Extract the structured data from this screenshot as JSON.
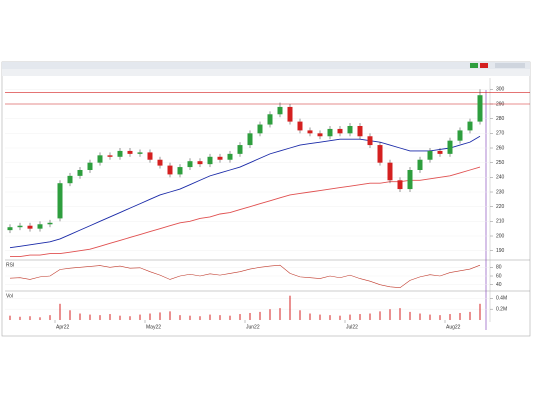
{
  "chart_data": [
    {
      "type": "candlestick",
      "categories": [
        null,
        null,
        null,
        null,
        null,
        "Apr22",
        null,
        null,
        null,
        null,
        null,
        null,
        null,
        null,
        "May22",
        null,
        null,
        null,
        null,
        null,
        null,
        null,
        null,
        null,
        "Jun22",
        null,
        null,
        null,
        null,
        null,
        null,
        null,
        null,
        null,
        "Jul22",
        null,
        null,
        null,
        null,
        null,
        null,
        null,
        null,
        null,
        "Aug22",
        null,
        null,
        null
      ],
      "open": [
        204,
        206,
        207,
        205,
        208,
        212,
        236,
        241,
        245,
        250,
        255,
        254,
        258,
        256,
        257,
        252,
        248,
        242,
        247,
        251,
        249,
        254,
        252,
        256,
        262,
        270,
        276,
        283,
        288,
        278,
        272,
        270,
        268,
        273,
        270,
        275,
        268,
        262,
        250,
        238,
        232,
        245,
        252,
        258,
        256,
        265,
        272,
        278
      ],
      "high": [
        208,
        209,
        209,
        210,
        211,
        238,
        243,
        247,
        252,
        257,
        257,
        260,
        260,
        259,
        259,
        254,
        250,
        249,
        253,
        253,
        256,
        256,
        258,
        264,
        272,
        278,
        285,
        291,
        290,
        280,
        274,
        272,
        275,
        275,
        277,
        277,
        270,
        264,
        252,
        240,
        247,
        254,
        260,
        260,
        267,
        274,
        280,
        300
      ],
      "low": [
        202,
        204,
        203,
        203,
        206,
        210,
        234,
        239,
        243,
        248,
        252,
        252,
        254,
        254,
        250,
        246,
        240,
        240,
        245,
        247,
        247,
        250,
        250,
        254,
        260,
        268,
        274,
        281,
        276,
        270,
        268,
        266,
        266,
        268,
        268,
        266,
        260,
        248,
        236,
        230,
        230,
        243,
        250,
        254,
        254,
        263,
        270,
        276
      ],
      "close": [
        206,
        207,
        205,
        208,
        209,
        236,
        241,
        245,
        250,
        255,
        254,
        258,
        256,
        257,
        252,
        248,
        242,
        247,
        251,
        249,
        254,
        252,
        256,
        262,
        270,
        276,
        283,
        288,
        278,
        272,
        270,
        268,
        273,
        270,
        275,
        268,
        262,
        250,
        238,
        232,
        245,
        252,
        258,
        256,
        265,
        272,
        278,
        296
      ],
      "up_color": "#2e9e3e",
      "down_color": "#d42020",
      "overlays": [
        {
          "color": "#1a2aa8",
          "values": [
            192,
            193,
            194,
            195,
            196,
            198,
            201,
            204,
            207,
            210,
            213,
            216,
            219,
            222,
            225,
            228,
            230,
            232,
            235,
            238,
            241,
            243,
            245,
            247,
            250,
            253,
            256,
            258,
            260,
            262,
            263,
            264,
            265,
            266,
            266,
            266,
            265,
            264,
            262,
            260,
            258,
            258,
            258,
            259,
            260,
            262,
            264,
            268
          ]
        },
        {
          "color": "#e05050",
          "values": [
            186,
            186,
            187,
            187,
            188,
            188,
            189,
            190,
            191,
            193,
            195,
            197,
            199,
            201,
            203,
            205,
            207,
            209,
            210,
            212,
            213,
            215,
            216,
            218,
            220,
            222,
            224,
            226,
            228,
            229,
            230,
            231,
            232,
            233,
            234,
            235,
            236,
            236,
            237,
            237,
            238,
            238,
            239,
            240,
            241,
            243,
            245,
            247
          ]
        }
      ],
      "levels": [
        {
          "value": 298,
          "color": "#d42020"
        },
        {
          "value": 290,
          "color": "#d42020"
        }
      ],
      "ylim": [
        185,
        305
      ],
      "yticks": [
        190,
        200,
        210,
        220,
        230,
        240,
        250,
        260,
        270,
        280,
        290,
        300
      ]
    },
    {
      "type": "line",
      "title": "RSI",
      "color": "#c0392b",
      "values": [
        55,
        56,
        52,
        58,
        60,
        75,
        78,
        80,
        82,
        84,
        80,
        83,
        78,
        79,
        70,
        62,
        52,
        60,
        64,
        60,
        65,
        62,
        66,
        70,
        76,
        80,
        83,
        85,
        66,
        58,
        56,
        54,
        60,
        56,
        62,
        54,
        48,
        40,
        35,
        33,
        50,
        58,
        63,
        60,
        68,
        72,
        76,
        85
      ],
      "ylim": [
        30,
        90
      ],
      "yticks": [
        40,
        60,
        80
      ]
    },
    {
      "type": "bar",
      "title": "Vol",
      "color": "#d42020",
      "values": [
        0.08,
        0.06,
        0.07,
        0.05,
        0.09,
        0.3,
        0.18,
        0.12,
        0.1,
        0.09,
        0.11,
        0.08,
        0.07,
        0.1,
        0.12,
        0.14,
        0.16,
        0.09,
        0.08,
        0.07,
        0.1,
        0.09,
        0.08,
        0.11,
        0.13,
        0.15,
        0.2,
        0.22,
        0.45,
        0.18,
        0.12,
        0.1,
        0.09,
        0.08,
        0.1,
        0.11,
        0.12,
        0.16,
        0.2,
        0.22,
        0.15,
        0.12,
        0.1,
        0.09,
        0.11,
        0.13,
        0.15,
        0.3
      ],
      "ylim": [
        0,
        0.5
      ],
      "yticks": [
        {
          "value": 0.2,
          "label": "0.2M"
        },
        {
          "value": 0.4,
          "label": "0.4M"
        }
      ]
    }
  ]
}
